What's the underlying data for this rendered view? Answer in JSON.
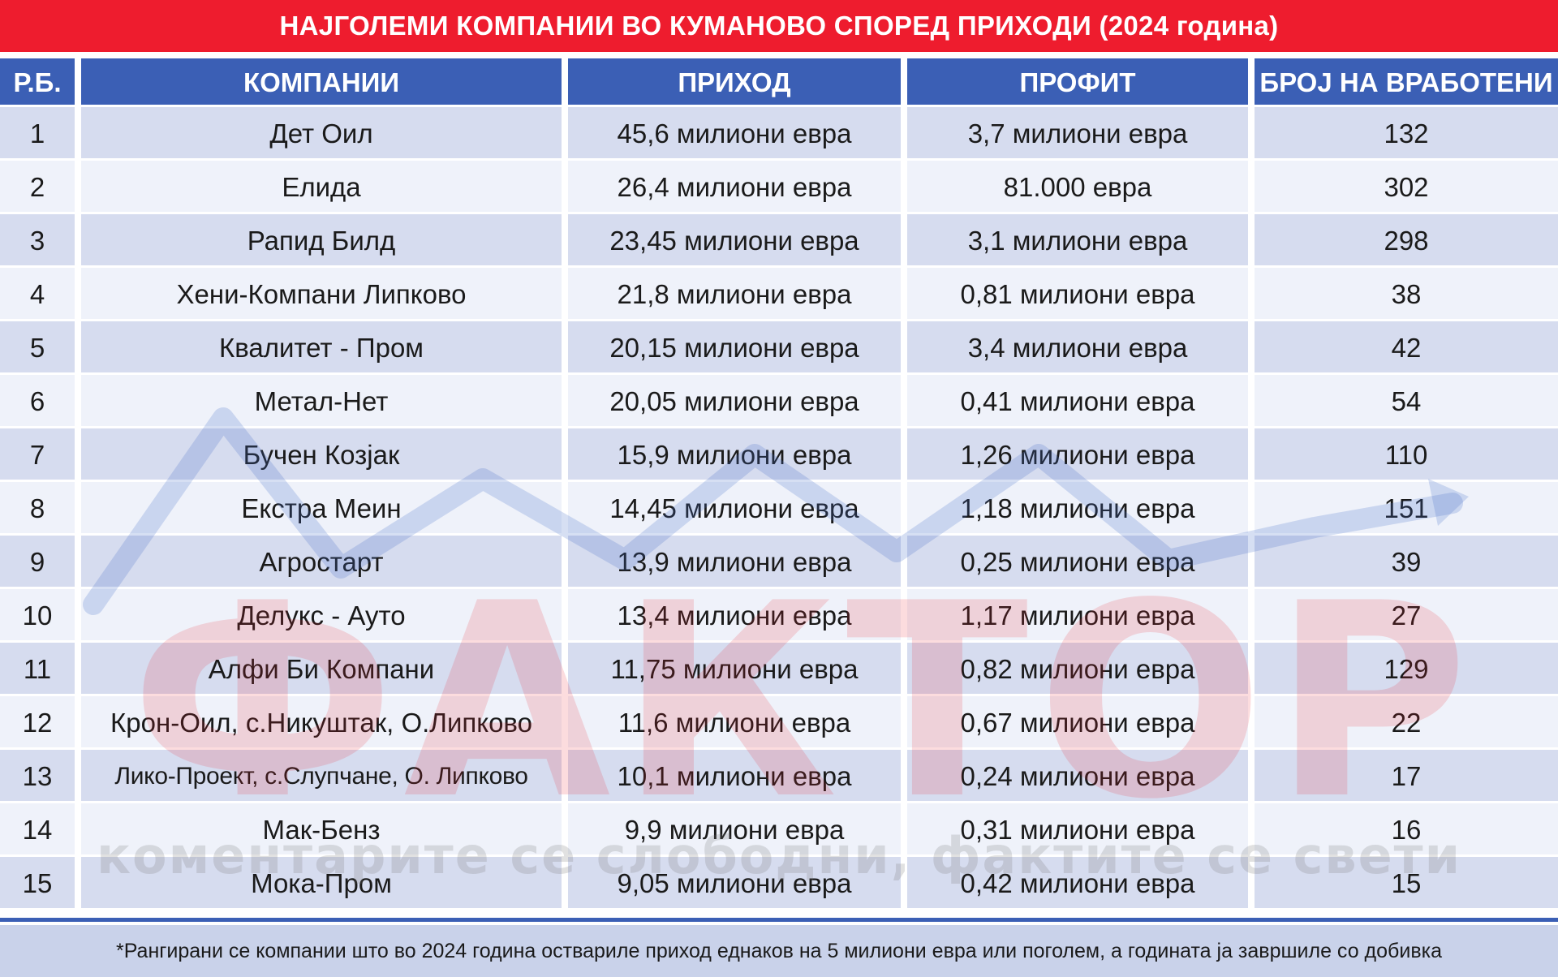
{
  "title": "НАЈГОЛЕМИ КОМПАНИИ ВО КУМАНОВО СПОРЕД ПРИХОДИ (2024 година)",
  "headers": [
    "Р.Б.",
    "КОМПАНИИ",
    "ПРИХОД",
    "ПРОФИТ",
    "БРОЈ НА ВРАБОТЕНИ"
  ],
  "rows": [
    [
      "1",
      "Дет Оил",
      "45,6 милиони евра",
      "3,7 милиони евра",
      "132"
    ],
    [
      "2",
      "Елида",
      "26,4 милиони евра",
      "81.000 евра",
      "302"
    ],
    [
      "3",
      "Рапид Билд",
      "23,45 милиони евра",
      "3,1 милиони евра",
      "298"
    ],
    [
      "4",
      "Хени-Компани Липково",
      "21,8 милиони евра",
      "0,81 милиони евра",
      "38"
    ],
    [
      "5",
      "Квалитет - Пром",
      "20,15 милиони евра",
      "3,4 милиони евра",
      "42"
    ],
    [
      "6",
      "Метал-Нет",
      "20,05 милиони евра",
      "0,41 милиони евра",
      "54"
    ],
    [
      "7",
      "Бучен Козјак",
      "15,9 милиони евра",
      "1,26 милиони евра",
      "110"
    ],
    [
      "8",
      "Екстра Меин",
      "14,45 милиони евра",
      "1,18 милиони евра",
      "151"
    ],
    [
      "9",
      "Агростарт",
      "13,9 милиони евра",
      "0,25 милиони евра",
      "39"
    ],
    [
      "10",
      "Делукс - Ауто",
      "13,4 милиони евра",
      "1,17 милиони евра",
      "27"
    ],
    [
      "11",
      "Алфи Би Компани",
      "11,75 милиони евра",
      "0,82 милиони евра",
      "129"
    ],
    [
      "12",
      "Крон-Оил, с.Никуштак, О.Липково",
      "11,6 милиони евра",
      "0,67 милиони евра",
      "22"
    ],
    [
      "13",
      "Лико-Проект, с.Слупчане, О. Липково",
      "10,1 милиони евра",
      "0,24 милиони евра",
      "17"
    ],
    [
      "14",
      "Мак-Бенз",
      "9,9 милиони евра",
      "0,31 милиони евра",
      "16"
    ],
    [
      "15",
      "Мока-Пром",
      "9,05 милиони евра",
      "0,42 милиони евра",
      "15"
    ]
  ],
  "footnote": "*Рангирани се компании што во 2024 година оствариле приход еднаков на 5 милиони евра или поголем, а годината ја завршиле со добивка",
  "watermark": {
    "brand": "ФАКТОР",
    "slogan": "коментарите се слободни, фактите се свети"
  },
  "colors": {
    "title_bg": "#ee1c2e",
    "header_bg": "#3b5fb5",
    "row_odd": "#d6dcef",
    "row_even": "#eff2fa",
    "footer_bg": "#c9d2ea"
  }
}
